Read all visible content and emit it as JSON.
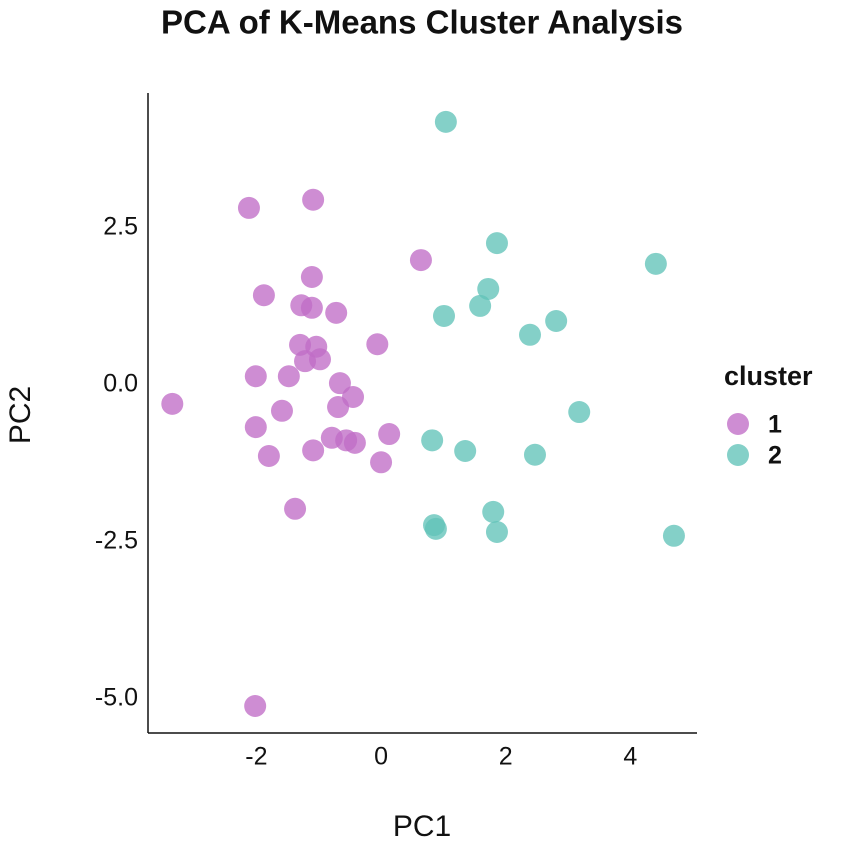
{
  "chart_data": {
    "type": "scatter",
    "title": "PCA of K-Means Cluster Analysis",
    "x_label": "PC1",
    "y_label": "PC2",
    "legend_title": "cluster",
    "legend": "right",
    "grid": false,
    "xlim": [
      -3.74,
      5.07
    ],
    "ylim": [
      -5.54,
      4.65
    ],
    "xticks": [
      -2,
      0,
      2,
      4
    ],
    "yticks": [
      2.5,
      {
        "value": 0,
        "label": "0.0"
      },
      -2.5,
      {
        "value": -5,
        "label": "-5.0"
      }
    ],
    "series": [
      {
        "name": "1",
        "color": "#c06dc6",
        "x": [
          -3.35,
          -2.12,
          -1.09,
          -1.88,
          -1.11,
          -1.28,
          -1.11,
          -0.72,
          -0.06,
          -1.3,
          -1.04,
          -1.22,
          -0.98,
          -2.01,
          -1.48,
          -0.66,
          -0.69,
          -0.45,
          -1.59,
          -2.01,
          -0.79,
          -0.56,
          -0.42,
          0.13,
          -1.09,
          -1.8,
          0.0,
          -1.38,
          -2.02,
          0.64
        ],
        "values": [
          -0.3,
          2.82,
          2.95,
          1.43,
          1.72,
          1.27,
          1.23,
          1.15,
          0.65,
          0.64,
          0.61,
          0.38,
          0.41,
          0.14,
          0.14,
          0.03,
          -0.35,
          -0.19,
          -0.41,
          -0.67,
          -0.84,
          -0.88,
          -0.92,
          -0.78,
          -1.04,
          -1.13,
          -1.23,
          -1.97,
          -5.11,
          1.99
        ]
      },
      {
        "name": "2",
        "color": "#62c3b8",
        "x": [
          1.04,
          1.86,
          4.41,
          1.72,
          1.59,
          1.01,
          2.81,
          2.39,
          3.18,
          0.82,
          1.35,
          2.47,
          1.8,
          0.85,
          0.88,
          1.86,
          4.7
        ],
        "values": [
          4.19,
          2.26,
          1.93,
          1.53,
          1.26,
          1.1,
          1.02,
          0.8,
          -0.43,
          -0.88,
          -1.05,
          -1.11,
          -2.02,
          -2.23,
          -2.29,
          -2.34,
          -2.4
        ]
      }
    ]
  }
}
